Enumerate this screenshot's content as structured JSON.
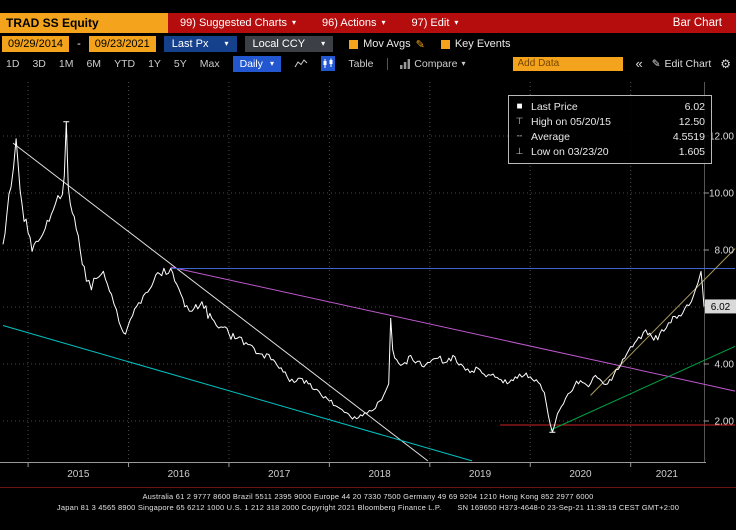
{
  "icons": {
    "chevron_down": "▾",
    "pencil": "✎",
    "gear": "⚙",
    "collapse": "«",
    "dash_separator": "-"
  },
  "colors": {
    "amber": "#f3a41c",
    "menu_red": "#b50d0d",
    "accent_blue": "#2257d0",
    "grid": "#4a4a4a",
    "last_price_box_bg": "#d9d9d9",
    "price_line": "#ffffff"
  },
  "menu_bar": {
    "ticker": "TRAD SS Equity",
    "items": [
      {
        "label": "99) Suggested Charts"
      },
      {
        "label": "96) Actions"
      },
      {
        "label": "97) Edit"
      }
    ],
    "right_label": "Bar Chart"
  },
  "fields_bar": {
    "date_from": "09/29/2014",
    "date_to": "09/23/2021",
    "price_field": "Last Px",
    "currency": "Local CCY",
    "mov_avgs_label": "Mov Avgs",
    "key_events_label": "Key Events"
  },
  "toolbar": {
    "periods": [
      "1D",
      "3D",
      "1M",
      "6M",
      "YTD",
      "1Y",
      "5Y",
      "Max"
    ],
    "frequency": "Daily",
    "table_label": "Table",
    "compare_label": "Compare",
    "add_data_placeholder": "Add Data",
    "edit_chart_label": "Edit Chart"
  },
  "legend": {
    "rows": [
      {
        "glyph": "■",
        "label": "Last Price",
        "value": "6.02"
      },
      {
        "glyph": "⊤",
        "label": "High on 05/20/15",
        "value": "12.50"
      },
      {
        "glyph": "╌",
        "label": "Average",
        "value": "4.5519"
      },
      {
        "glyph": "⊥",
        "label": "Low on 03/23/20",
        "value": "1.605"
      }
    ]
  },
  "chart_data": {
    "type": "line",
    "security": "TRAD SS Equity",
    "field": "Last Px",
    "frequency": "Daily",
    "x_range": [
      2014.75,
      2021.73
    ],
    "ylim": [
      0.56,
      13.85
    ],
    "grid": true,
    "x_ticks": [
      {
        "t": 2015,
        "label": "2015",
        "label_t": 2015.5
      },
      {
        "t": 2016,
        "label": "2016",
        "label_t": 2016.5
      },
      {
        "t": 2017,
        "label": "2017",
        "label_t": 2017.5
      },
      {
        "t": 2018,
        "label": "2018",
        "label_t": 2018.5
      },
      {
        "t": 2019,
        "label": "2019",
        "label_t": 2019.5
      },
      {
        "t": 2020,
        "label": "2020",
        "label_t": 2020.5
      },
      {
        "t": 2021,
        "label": "2021",
        "label_t": 2021.36
      }
    ],
    "y_ticks": [
      {
        "value": 12,
        "label": "12.00"
      },
      {
        "value": 10,
        "label": "10.00"
      },
      {
        "value": 8,
        "label": "8.00"
      },
      {
        "value": 6,
        "label": ""
      },
      {
        "value": 4,
        "label": "4.00"
      },
      {
        "value": 2,
        "label": "2.00"
      }
    ],
    "last_price": 6.02,
    "last_price_label": "6.02",
    "high": {
      "t": 2015.38,
      "value": 12.5,
      "date": "05/20/15"
    },
    "low": {
      "t": 2020.22,
      "value": 1.605,
      "date": "03/23/20"
    },
    "average": 4.5519,
    "series": [
      {
        "name": "Last Price",
        "color": "#ffffff",
        "points": [
          [
            2014.75,
            8.2
          ],
          [
            2014.79,
            9.3
          ],
          [
            2014.83,
            10.2
          ],
          [
            2014.88,
            11.9
          ],
          [
            2014.92,
            10.1
          ],
          [
            2014.96,
            9.0
          ],
          [
            2015.0,
            8.6
          ],
          [
            2015.04,
            7.95
          ],
          [
            2015.1,
            8.3
          ],
          [
            2015.17,
            8.75
          ],
          [
            2015.25,
            9.4
          ],
          [
            2015.32,
            9.8
          ],
          [
            2015.36,
            10.6
          ],
          [
            2015.38,
            12.5
          ],
          [
            2015.4,
            10.2
          ],
          [
            2015.44,
            9.3
          ],
          [
            2015.5,
            8.5
          ],
          [
            2015.54,
            7.5
          ],
          [
            2015.58,
            6.9
          ],
          [
            2015.63,
            6.6
          ],
          [
            2015.68,
            7.0
          ],
          [
            2015.73,
            7.15
          ],
          [
            2015.79,
            6.8
          ],
          [
            2015.83,
            6.45
          ],
          [
            2015.88,
            5.9
          ],
          [
            2015.93,
            5.25
          ],
          [
            2015.97,
            5.05
          ],
          [
            2016.04,
            5.7
          ],
          [
            2016.1,
            6.15
          ],
          [
            2016.17,
            6.5
          ],
          [
            2016.25,
            6.9
          ],
          [
            2016.33,
            7.1
          ],
          [
            2016.42,
            7.35
          ],
          [
            2016.48,
            6.8
          ],
          [
            2016.54,
            6.3
          ],
          [
            2016.58,
            6.05
          ],
          [
            2016.63,
            5.85
          ],
          [
            2016.71,
            6.05
          ],
          [
            2016.75,
            5.95
          ],
          [
            2016.83,
            5.6
          ],
          [
            2016.92,
            5.3
          ],
          [
            2017.0,
            5.05
          ],
          [
            2017.08,
            4.9
          ],
          [
            2017.17,
            4.75
          ],
          [
            2017.25,
            4.55
          ],
          [
            2017.33,
            4.35
          ],
          [
            2017.42,
            4.15
          ],
          [
            2017.5,
            3.85
          ],
          [
            2017.58,
            3.55
          ],
          [
            2017.65,
            3.35
          ],
          [
            2017.71,
            3.5
          ],
          [
            2017.79,
            3.3
          ],
          [
            2017.85,
            3.1
          ],
          [
            2017.92,
            2.9
          ],
          [
            2018.0,
            2.7
          ],
          [
            2018.08,
            2.5
          ],
          [
            2018.15,
            2.3
          ],
          [
            2018.21,
            2.15
          ],
          [
            2018.27,
            2.08
          ],
          [
            2018.33,
            2.18
          ],
          [
            2018.42,
            2.35
          ],
          [
            2018.5,
            2.7
          ],
          [
            2018.56,
            3.05
          ],
          [
            2018.59,
            3.3
          ],
          [
            2018.61,
            5.6
          ],
          [
            2018.63,
            4.5
          ],
          [
            2018.67,
            4.15
          ],
          [
            2018.71,
            3.95
          ],
          [
            2018.75,
            4.05
          ],
          [
            2018.81,
            4.3
          ],
          [
            2018.88,
            4.1
          ],
          [
            2018.94,
            3.9
          ],
          [
            2019.0,
            4.05
          ],
          [
            2019.08,
            4.2
          ],
          [
            2019.15,
            4.05
          ],
          [
            2019.23,
            4.3
          ],
          [
            2019.31,
            4.0
          ],
          [
            2019.4,
            3.7
          ],
          [
            2019.48,
            3.85
          ],
          [
            2019.56,
            3.55
          ],
          [
            2019.63,
            3.65
          ],
          [
            2019.71,
            3.45
          ],
          [
            2019.79,
            3.35
          ],
          [
            2019.87,
            3.5
          ],
          [
            2019.94,
            3.6
          ],
          [
            2020.0,
            3.55
          ],
          [
            2020.08,
            3.35
          ],
          [
            2020.14,
            3.0
          ],
          [
            2020.18,
            2.2
          ],
          [
            2020.22,
            1.605
          ],
          [
            2020.27,
            2.25
          ],
          [
            2020.33,
            2.6
          ],
          [
            2020.4,
            3.0
          ],
          [
            2020.46,
            3.4
          ],
          [
            2020.52,
            3.35
          ],
          [
            2020.58,
            3.2
          ],
          [
            2020.65,
            3.6
          ],
          [
            2020.71,
            3.4
          ],
          [
            2020.77,
            3.3
          ],
          [
            2020.83,
            3.6
          ],
          [
            2020.9,
            3.95
          ],
          [
            2020.96,
            4.35
          ],
          [
            2021.02,
            4.6
          ],
          [
            2021.08,
            4.95
          ],
          [
            2021.15,
            5.2
          ],
          [
            2021.21,
            4.95
          ],
          [
            2021.27,
            4.85
          ],
          [
            2021.33,
            5.15
          ],
          [
            2021.4,
            5.45
          ],
          [
            2021.46,
            5.6
          ],
          [
            2021.52,
            5.8
          ],
          [
            2021.58,
            6.05
          ],
          [
            2021.63,
            6.45
          ],
          [
            2021.67,
            6.85
          ],
          [
            2021.7,
            7.25
          ],
          [
            2021.715,
            6.7
          ],
          [
            2021.73,
            6.02
          ]
        ]
      }
    ],
    "trendlines": [
      {
        "name": "major-downtrend",
        "color": "#e0e0e0",
        "from": [
          2014.85,
          11.75
        ],
        "to": [
          2018.98,
          0.6
        ]
      },
      {
        "name": "lower-downtrend",
        "color": "#00c4c4",
        "from": [
          2014.75,
          5.35
        ],
        "to": [
          2019.42,
          0.6
        ]
      },
      {
        "name": "long-downtrend",
        "color": "#bd59cc",
        "from": [
          2016.42,
          7.4
        ],
        "to": [
          2022.04,
          3.05
        ]
      },
      {
        "name": "resistance-horizontal",
        "color": "#3f63cf",
        "from": [
          2016.42,
          7.35
        ],
        "to": [
          2022.04,
          7.35
        ]
      },
      {
        "name": "support-horizontal",
        "color": "#cc2525",
        "from": [
          2019.7,
          1.86
        ],
        "to": [
          2022.04,
          1.86
        ]
      },
      {
        "name": "recovery-uptrend",
        "color": "#00a243",
        "from": [
          2020.2,
          1.68
        ],
        "to": [
          2022.04,
          4.62
        ]
      },
      {
        "name": "rally-uptrend",
        "color": "#ac9c62",
        "from": [
          2020.6,
          2.9
        ],
        "to": [
          2022.04,
          8.05
        ]
      }
    ]
  },
  "footer": {
    "line1": "Australia 61 2 9777 8600 Brazil 5511 2395 9000 Europe 44 20 7330 7500 Germany 49 69 9204 1210 Hong Kong 852 2977 6000",
    "line2": "Japan 81 3 4565 8900    Singapore 65 6212 1000    U.S. 1 212 318 2000    Copyright 2021 Bloomberg Finance L.P.",
    "serial": "SN 169650 H373-4648-0 23-Sep-21 11:39:19 CEST  GMT+2:00"
  }
}
